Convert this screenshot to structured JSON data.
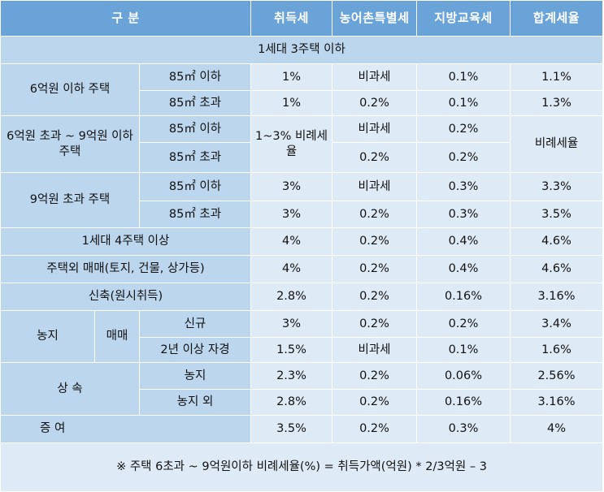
{
  "header": {
    "category": "구 분",
    "acquisition_tax": "취득세",
    "rural_special_tax": "농어촌특별세",
    "local_education_tax": "지방교육세",
    "total_tax_rate": "합계세율"
  },
  "section_1household_3homes": "1세대 3주택 이하",
  "under_600m": {
    "label": "6억원 이하 주택",
    "rows": [
      {
        "size": "85㎡ 이하",
        "acq": "1%",
        "rural": "비과세",
        "edu": "0.1%",
        "total": "1.1%"
      },
      {
        "size": "85㎡ 초과",
        "acq": "1%",
        "rural": "0.2%",
        "edu": "0.1%",
        "total": "1.3%"
      }
    ]
  },
  "between_600m_900m": {
    "label": "6억원 초과 ~ 9억원 이하 주택",
    "acq": "1~3% 비례세율",
    "total": "비례세율",
    "rows": [
      {
        "size": "85㎡ 이하",
        "rural": "비과세",
        "edu": "0.2%"
      },
      {
        "size": "85㎡ 초과",
        "rural": "0.2%",
        "edu": "0.2%"
      }
    ]
  },
  "over_900m": {
    "label": "9억원 초과 주택",
    "rows": [
      {
        "size": "85㎡ 이하",
        "acq": "3%",
        "rural": "비과세",
        "edu": "0.3%",
        "total": "3.3%"
      },
      {
        "size": "85㎡ 초과",
        "acq": "3%",
        "rural": "0.2%",
        "edu": "0.3%",
        "total": "3.5%"
      }
    ]
  },
  "household_4plus": {
    "label": "1세대 4주택 이상",
    "acq": "4%",
    "rural": "0.2%",
    "edu": "0.4%",
    "total": "4.6%"
  },
  "non_housing": {
    "label": "주택외 매매(토지, 건물, 상가등)",
    "acq": "4%",
    "rural": "0.2%",
    "edu": "0.4%",
    "total": "4.6%"
  },
  "new_build": {
    "label": "신축(원시취득)",
    "acq": "2.8%",
    "rural": "0.2%",
    "edu": "0.16%",
    "total": "3.16%"
  },
  "farmland": {
    "label": "농지",
    "sale_label": "매매",
    "rows": [
      {
        "type": "신규",
        "acq": "3%",
        "rural": "0.2%",
        "edu": "0.2%",
        "total": "3.4%"
      },
      {
        "type": "2년 이상 자경",
        "acq": "1.5%",
        "rural": "비과세",
        "edu": "0.1%",
        "total": "1.6%"
      }
    ]
  },
  "inheritance": {
    "label": "상 속",
    "rows": [
      {
        "type": "농지",
        "acq": "2.3%",
        "rural": "0.2%",
        "edu": "0.06%",
        "total": "2.56%"
      },
      {
        "type": "농지 외",
        "acq": "2.8%",
        "rural": "0.2%",
        "edu": "0.16%",
        "total": "3.16%"
      }
    ]
  },
  "gift": {
    "label": "증 여",
    "acq": "3.5%",
    "rural": "0.2%",
    "edu": "0.3%",
    "total": "4%"
  },
  "footnote": "※ 주택 6초과 ~ 9억원이하 비례세율(%) = 취득가액(억원) * 2/3억원 – 3",
  "colors": {
    "header_bg": "#6aa3d8",
    "label_bg": "#bcd6ee",
    "value_bg": "#deeaf6"
  }
}
